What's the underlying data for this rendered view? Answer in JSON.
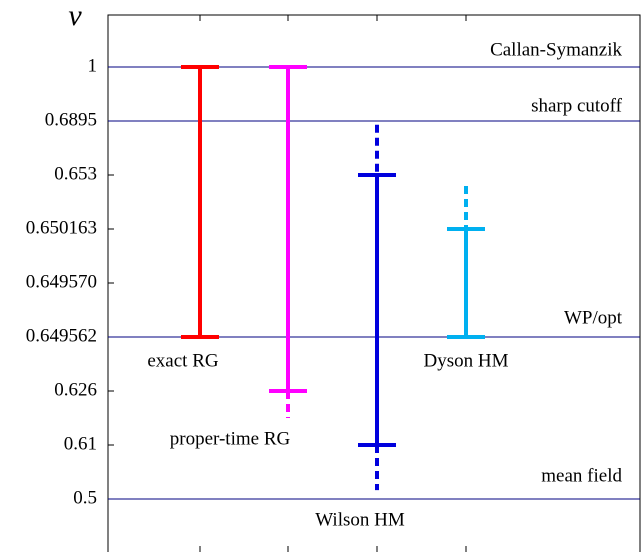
{
  "chart_data": {
    "type": "range",
    "y_label": "ν",
    "yticks": [
      1,
      {
        "value": 0.6895,
        "label": "0.6895"
      },
      0.653,
      0.650163,
      {
        "value": 0.64957,
        "label": "0.649570"
      },
      0.649562,
      0.626,
      0.61,
      0.5
    ],
    "reference_lines": [
      {
        "value": 1,
        "label": "Callan-Symanzik"
      },
      {
        "value": 0.6895,
        "label": "sharp cutoff"
      },
      {
        "value": 0.649562,
        "label": "WP/opt"
      },
      {
        "value": 0.5,
        "label": "mean field"
      }
    ],
    "reference_color": "#000080",
    "series": [
      {
        "name": "exact RG",
        "color": "#ff0000",
        "low": 0.649562,
        "high": 1,
        "dashed_low": null,
        "dashed_high": null
      },
      {
        "name": "proper-time RG",
        "color": "#ff00ff",
        "low": 0.626,
        "high": 1,
        "dashed_low": 0.618,
        "dashed_high": null
      },
      {
        "name": "Wilson HM",
        "color": "#0000dd",
        "low": 0.61,
        "high": 0.653,
        "dashed_low": 0.518,
        "dashed_high": 0.687
      },
      {
        "name": "Dyson HM",
        "color": "#00b0f0",
        "low": 0.649562,
        "high": 0.650163,
        "dashed_low": null,
        "dashed_high": 0.65242
      }
    ]
  }
}
